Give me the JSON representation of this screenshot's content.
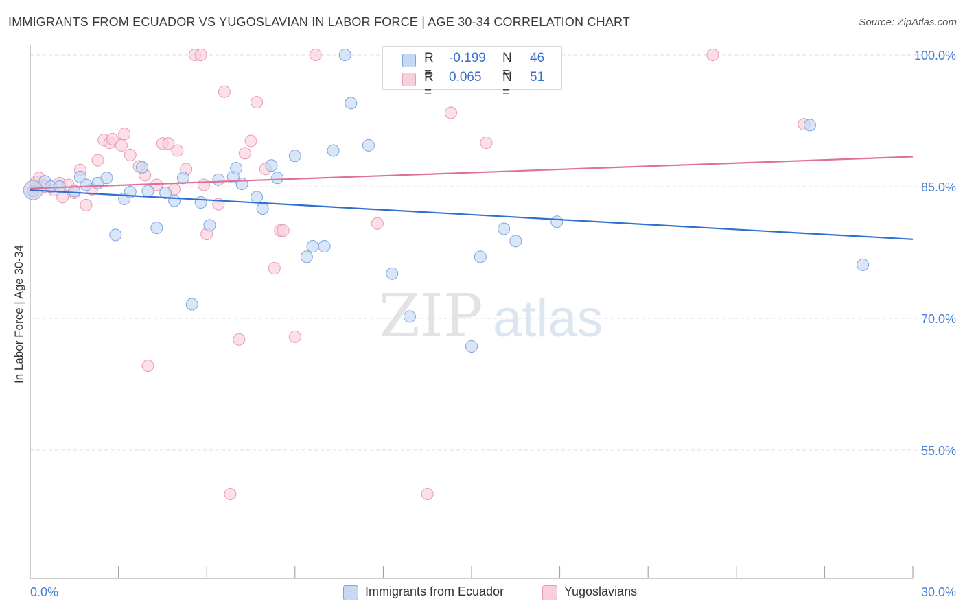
{
  "title": "IMMIGRANTS FROM ECUADOR VS YUGOSLAVIAN IN LABOR FORCE | AGE 30-34 CORRELATION CHART",
  "source": "Source: ZipAtlas.com",
  "watermark": "ZIPatlas",
  "legend_top": {
    "rows": [
      {
        "r_label": "R =",
        "r_value": "-0.199",
        "n_label": "N =",
        "n_value": "46"
      },
      {
        "r_label": "R =",
        "r_value": "0.065",
        "n_label": "N =",
        "n_value": "51"
      }
    ]
  },
  "legend_bottom": [
    "Immigrants from Ecuador",
    "Yugoslavians"
  ],
  "chart_data": {
    "type": "scatter",
    "title": "IMMIGRANTS FROM ECUADOR VS YUGOSLAVIAN IN LABOR FORCE | AGE 30-34 CORRELATION CHART",
    "xlabel": "",
    "ylabel": "In Labor Force | Age 30-34",
    "xlim": [
      0,
      30
    ],
    "ylim": [
      40,
      101.5
    ],
    "x_tick_labels": [
      "0.0%",
      "30.0%"
    ],
    "y_ticks": [
      55,
      70,
      85,
      100
    ],
    "y_tick_labels": [
      "55.0%",
      "70.0%",
      "85.0%",
      "100.0%"
    ],
    "grid": true,
    "legend": "top-center",
    "colors": {
      "ecuador": "#5b8fd9",
      "yugoslavians": "#e889a8",
      "ecuador_line": "#2f6fd0",
      "yugoslavians_line": "#e0709a"
    },
    "series": [
      {
        "name": "Immigrants from Ecuador",
        "r": -0.199,
        "n": 46,
        "trend": [
          [
            0,
            84.6
          ],
          [
            30,
            79.0
          ]
        ],
        "points": [
          [
            0.1,
            84.5
          ],
          [
            0.5,
            85.6
          ],
          [
            0.7,
            85.0
          ],
          [
            1.0,
            85.0
          ],
          [
            1.5,
            84.5
          ],
          [
            1.7,
            86.1
          ],
          [
            1.9,
            85.2
          ],
          [
            2.3,
            85.4
          ],
          [
            2.6,
            86.0
          ],
          [
            2.9,
            79.5
          ],
          [
            3.2,
            83.6
          ],
          [
            3.4,
            84.4
          ],
          [
            3.8,
            87.2
          ],
          [
            4.0,
            84.5
          ],
          [
            4.3,
            80.3
          ],
          [
            4.6,
            84.3
          ],
          [
            4.9,
            83.4
          ],
          [
            5.2,
            86.0
          ],
          [
            5.5,
            71.6
          ],
          [
            5.8,
            83.2
          ],
          [
            6.1,
            80.6
          ],
          [
            6.4,
            85.8
          ],
          [
            6.9,
            86.1
          ],
          [
            7.0,
            87.1
          ],
          [
            7.2,
            85.3
          ],
          [
            7.7,
            83.8
          ],
          [
            7.9,
            82.5
          ],
          [
            8.2,
            87.4
          ],
          [
            8.4,
            86.0
          ],
          [
            9.0,
            88.5
          ],
          [
            9.4,
            77.0
          ],
          [
            9.6,
            78.2
          ],
          [
            10.0,
            78.2
          ],
          [
            10.3,
            89.1
          ],
          [
            10.7,
            100.0
          ],
          [
            10.9,
            94.5
          ],
          [
            11.5,
            89.7
          ],
          [
            12.3,
            75.1
          ],
          [
            12.9,
            70.2
          ],
          [
            15.0,
            66.8
          ],
          [
            15.3,
            77.0
          ],
          [
            16.1,
            80.2
          ],
          [
            16.5,
            78.8
          ],
          [
            17.9,
            81.0
          ],
          [
            26.5,
            92.0
          ],
          [
            28.3,
            76.1
          ]
        ]
      },
      {
        "name": "Yugoslavians",
        "r": 0.065,
        "n": 51,
        "trend": [
          [
            0,
            84.8
          ],
          [
            30,
            88.4
          ]
        ],
        "points": [
          [
            0.2,
            85.5
          ],
          [
            0.3,
            86.0
          ],
          [
            0.5,
            85.0
          ],
          [
            0.8,
            84.6
          ],
          [
            1.0,
            85.4
          ],
          [
            1.1,
            83.8
          ],
          [
            1.3,
            85.2
          ],
          [
            1.5,
            84.3
          ],
          [
            1.7,
            86.9
          ],
          [
            1.9,
            82.9
          ],
          [
            2.1,
            84.7
          ],
          [
            2.3,
            88.0
          ],
          [
            2.5,
            90.3
          ],
          [
            2.7,
            90.0
          ],
          [
            2.8,
            90.4
          ],
          [
            3.1,
            89.7
          ],
          [
            3.2,
            91.0
          ],
          [
            3.4,
            88.6
          ],
          [
            3.7,
            87.3
          ],
          [
            3.9,
            86.3
          ],
          [
            4.0,
            64.6
          ],
          [
            4.3,
            85.2
          ],
          [
            4.5,
            89.9
          ],
          [
            4.7,
            89.9
          ],
          [
            4.9,
            84.7
          ],
          [
            5.0,
            89.1
          ],
          [
            5.3,
            87.0
          ],
          [
            5.6,
            100.0
          ],
          [
            5.8,
            100.0
          ],
          [
            5.9,
            85.2
          ],
          [
            6.0,
            79.6
          ],
          [
            6.4,
            83.0
          ],
          [
            6.6,
            95.8
          ],
          [
            6.8,
            50.0
          ],
          [
            7.1,
            67.6
          ],
          [
            7.3,
            88.8
          ],
          [
            7.5,
            90.2
          ],
          [
            7.7,
            94.6
          ],
          [
            8.0,
            87.0
          ],
          [
            8.3,
            75.7
          ],
          [
            8.5,
            80.0
          ],
          [
            8.6,
            80.0
          ],
          [
            9.0,
            67.9
          ],
          [
            9.7,
            100.0
          ],
          [
            11.8,
            80.8
          ],
          [
            12.7,
            100.0
          ],
          [
            13.5,
            50.0
          ],
          [
            14.3,
            93.4
          ],
          [
            15.5,
            90.0
          ],
          [
            23.2,
            100.0
          ],
          [
            26.3,
            92.1
          ]
        ]
      }
    ]
  }
}
